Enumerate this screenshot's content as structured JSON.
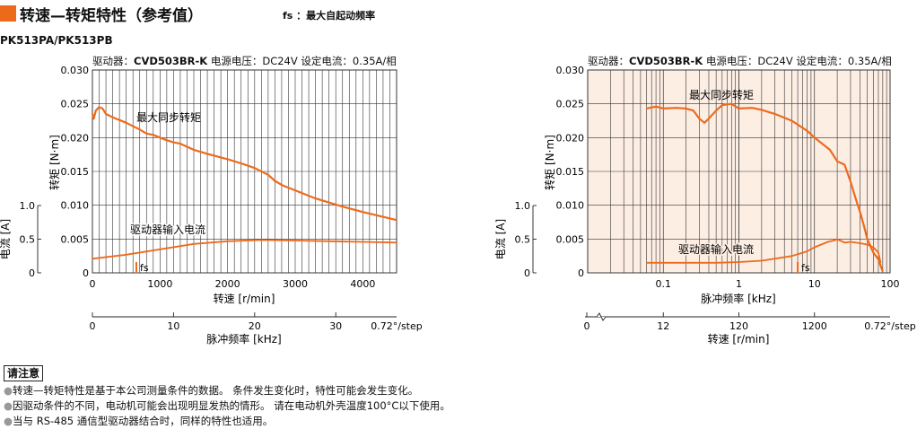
{
  "header": {
    "title": "转速—转矩特性（参考值）",
    "fs_note": "fs ：最大自起动频率",
    "model": "PK513PA/PK513PB"
  },
  "conditions": {
    "driver_label": "驱动器：",
    "driver_model": "CVD503BR-K",
    "supply": "电源电压：DC24V",
    "current": "设定电流：0.35A/相"
  },
  "labels": {
    "torque_axis": "转矩 [N·m]",
    "current_axis": "电流 [A]",
    "speed_axis": "转速 [r/min]",
    "pulse_axis": "脉冲频率 [kHz]",
    "max_sync_torque": "最大同步转矩",
    "driver_input_current": "驱动器输入电流",
    "fs": "fs",
    "step_angle": "0.72°/step"
  },
  "colors": {
    "curve": "#ee6a1b",
    "plot_bg_right": "#fdeee4",
    "accent_square": "#ee6a1b"
  },
  "notes": {
    "box_label": "请注意",
    "items": [
      "转速—转矩特性是基于本公司测量条件的数据。 条件发生变化时，特性可能会发生变化。",
      "因驱动条件的不同，电动机可能会出现明显发热的情形。 请在电动机外壳温度100°C以下使用。",
      "当与 RS-485 通信型驱动器结合时，同样的特性也适用。"
    ]
  },
  "chart_data": [
    {
      "type": "line",
      "x_axis": {
        "label": "转速 [r/min]",
        "range": [
          0,
          4500
        ],
        "ticks": [
          "0",
          "1000",
          "2000",
          "3000",
          "4000"
        ]
      },
      "x2_axis": {
        "label": "脉冲频率 [kHz]",
        "range": [
          0,
          37.5
        ],
        "ticks": [
          "0",
          "10",
          "20",
          "30"
        ],
        "unit_note": "0.72°/step"
      },
      "y_axis": {
        "label": "转矩 [N·m]",
        "range": [
          0,
          0.03
        ],
        "ticks": [
          "0",
          "0.005",
          "0.010",
          "0.015",
          "0.020",
          "0.025",
          "0.030"
        ]
      },
      "y2_axis": {
        "label": "电流 [A]",
        "range": [
          0,
          1.0
        ],
        "ticks": [
          "0",
          "0.5",
          "1.0"
        ]
      },
      "series": [
        {
          "name": "最大同步转矩",
          "axis": "torque",
          "x": [
            0,
            20,
            50,
            100,
            150,
            200,
            300,
            500,
            700,
            800,
            900,
            1000,
            1100,
            1200,
            1300,
            1500,
            1700,
            2000,
            2200,
            2400,
            2600,
            2700,
            2800,
            3000,
            3300,
            3700,
            4000,
            4500
          ],
          "y": [
            0.0235,
            0.0228,
            0.024,
            0.0245,
            0.0243,
            0.0235,
            0.023,
            0.0222,
            0.0212,
            0.0206,
            0.0204,
            0.02,
            0.0196,
            0.0193,
            0.0191,
            0.0182,
            0.0176,
            0.0168,
            0.0162,
            0.0155,
            0.0145,
            0.0136,
            0.013,
            0.0122,
            0.011,
            0.0098,
            0.009,
            0.0078
          ]
        },
        {
          "name": "驱动器输入电流",
          "axis": "current",
          "x": [
            0,
            500,
            1000,
            1500,
            2000,
            2500,
            3000,
            3500,
            4000,
            4500
          ],
          "y": [
            0.21,
            0.27,
            0.35,
            0.43,
            0.47,
            0.49,
            0.48,
            0.47,
            0.46,
            0.45
          ]
        }
      ],
      "annotations": [
        {
          "text": "fs",
          "x": 650
        }
      ],
      "grid": true
    },
    {
      "type": "line",
      "x_axis": {
        "label": "脉冲频率 [kHz]",
        "scale": "log",
        "range": [
          0.01,
          100
        ],
        "ticks": [
          "0.1",
          "1",
          "10",
          "100"
        ]
      },
      "x2_axis": {
        "label": "转速 [r/min]",
        "ticks": [
          "0",
          "12",
          "120",
          "1200"
        ],
        "unit_note": "0.72°/step"
      },
      "y_axis": {
        "label": "转矩 [N·m]",
        "range": [
          0,
          0.03
        ],
        "ticks": [
          "0",
          "0.005",
          "0.010",
          "0.015",
          "0.020",
          "0.025",
          "0.030"
        ]
      },
      "y2_axis": {
        "label": "电流 [A]",
        "range": [
          0,
          1.0
        ],
        "ticks": [
          "0",
          "0.5",
          "1.0"
        ]
      },
      "series": [
        {
          "name": "最大同步转矩",
          "axis": "torque",
          "x": [
            0.06,
            0.08,
            0.1,
            0.15,
            0.2,
            0.25,
            0.3,
            0.35,
            0.4,
            0.5,
            0.6,
            0.8,
            1,
            1.5,
            2,
            3,
            5,
            8,
            10,
            13,
            16,
            20,
            25,
            30,
            35,
            40,
            45,
            50,
            60,
            70,
            80
          ],
          "y": [
            0.0243,
            0.0246,
            0.0243,
            0.0244,
            0.0243,
            0.024,
            0.0228,
            0.0222,
            0.0228,
            0.024,
            0.0248,
            0.025,
            0.0243,
            0.0244,
            0.0241,
            0.0235,
            0.0225,
            0.021,
            0.02,
            0.019,
            0.0182,
            0.0165,
            0.016,
            0.0135,
            0.011,
            0.009,
            0.007,
            0.005,
            0.003,
            0.002,
            0.0002
          ]
        },
        {
          "name": "驱动器输入电流",
          "axis": "current",
          "x": [
            0.06,
            0.1,
            0.5,
            1,
            2,
            5,
            8,
            10,
            15,
            18,
            20,
            25,
            30,
            40,
            50,
            60,
            70,
            75
          ],
          "y": [
            0.15,
            0.15,
            0.15,
            0.16,
            0.18,
            0.25,
            0.32,
            0.38,
            0.46,
            0.48,
            0.5,
            0.45,
            0.46,
            0.44,
            0.42,
            0.38,
            0.3,
            0.15
          ]
        }
      ],
      "annotations": [
        {
          "text": "fs",
          "x": 6
        }
      ],
      "grid": true
    }
  ]
}
